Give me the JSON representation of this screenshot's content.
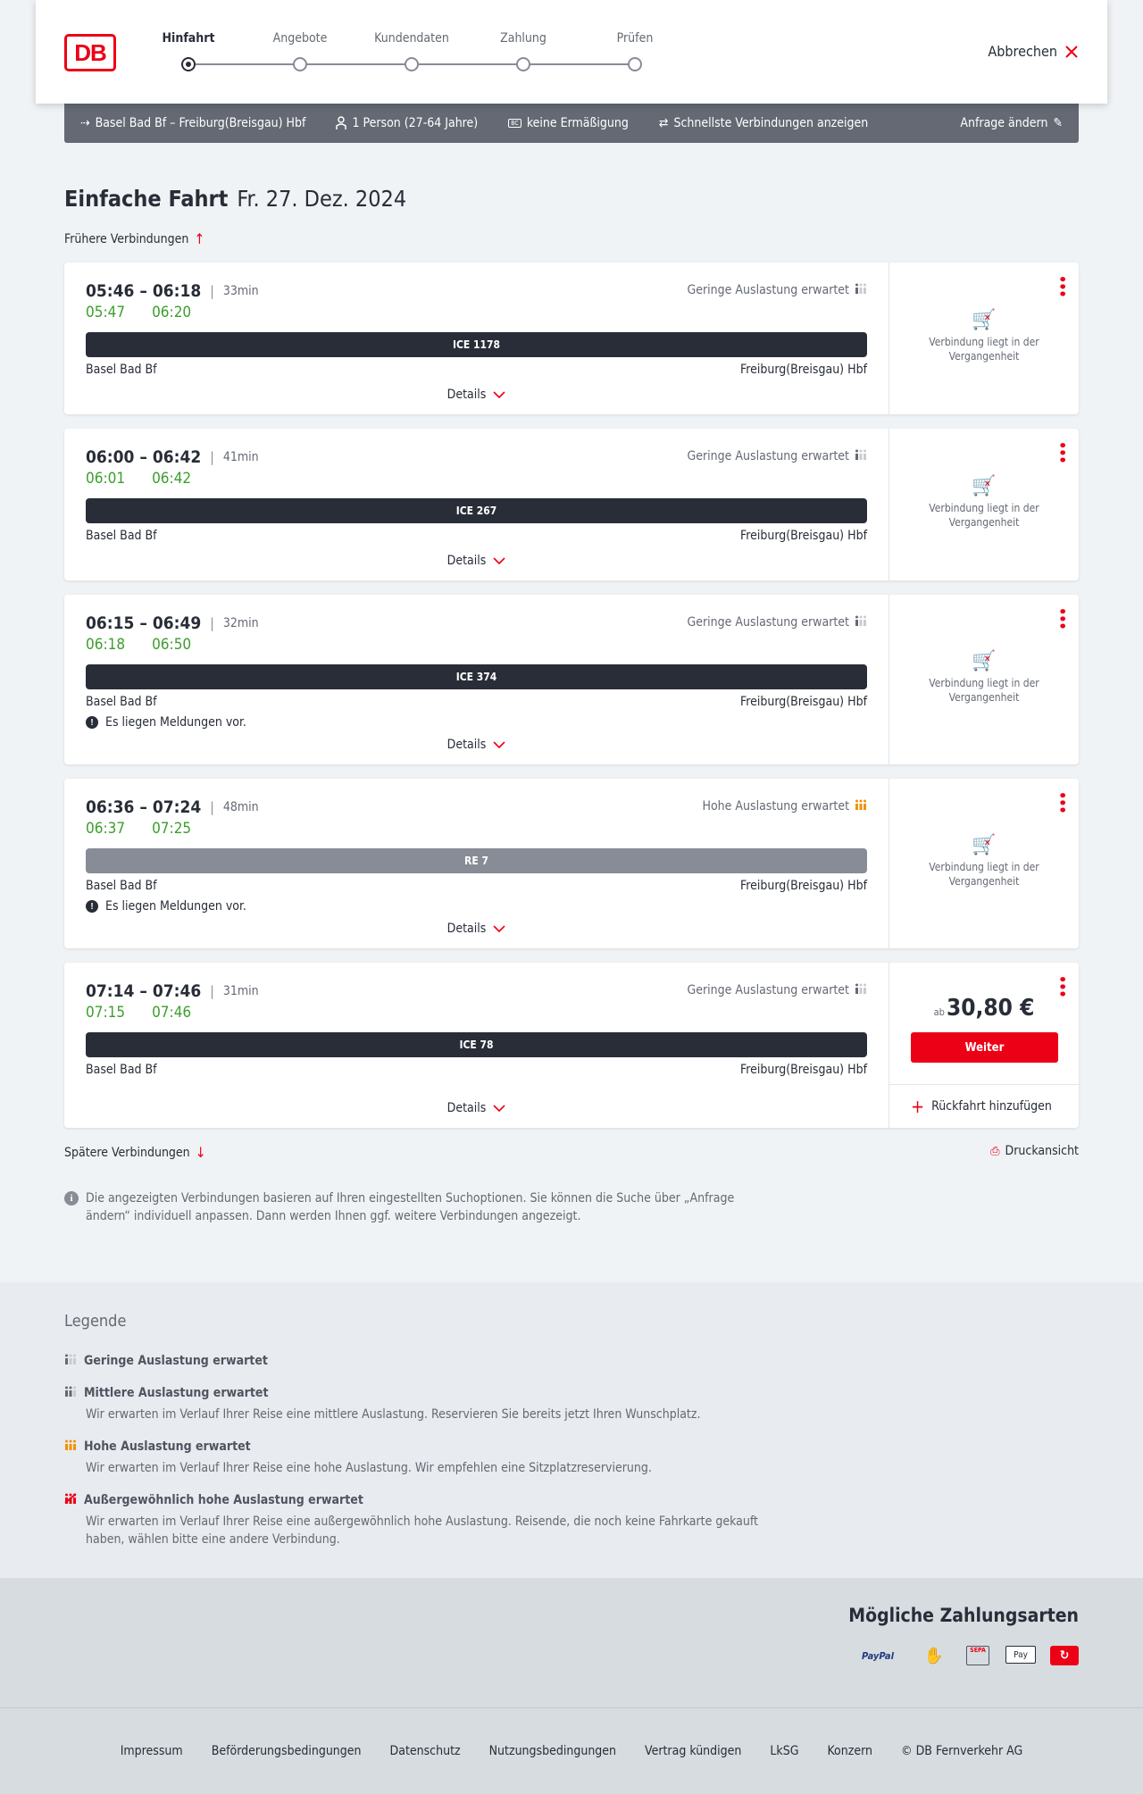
{
  "header": {
    "logo": "DB",
    "cancel": "Abbrechen",
    "steps": [
      "Hinfahrt",
      "Angebote",
      "Kundendaten",
      "Zahlung",
      "Prüfen"
    ],
    "active_step": 0
  },
  "query": {
    "route": "Basel Bad Bf – Freiburg(Breisgau) Hbf",
    "passengers": "1 Person (27-64 Jahre)",
    "discount": "keine Ermäßigung",
    "fastest": "Schnellste Verbindungen anzeigen",
    "edit": "Anfrage ändern"
  },
  "title": {
    "type": "Einfache Fahrt",
    "date": "Fr. 27. Dez. 2024"
  },
  "earlier": "Frühere Verbindungen",
  "later": "Spätere Verbindungen",
  "print": "Druckansicht",
  "connections": [
    {
      "times": "05:46 – 06:18",
      "duration": "33min",
      "occupancy": "Geringe Auslastung erwartet",
      "occ_level": "low",
      "rt_dep": "05:47",
      "rt_arr": "06:20",
      "train": "ICE 1178",
      "train_type": "ice",
      "from": "Basel Bad Bf",
      "to": "Freiburg(Breisgau) Hbf",
      "message": null,
      "details": "Details",
      "past": "Verbindung liegt in der Vergangenheit"
    },
    {
      "times": "06:00 – 06:42",
      "duration": "41min",
      "occupancy": "Geringe Auslastung erwartet",
      "occ_level": "low",
      "rt_dep": "06:01",
      "rt_arr": "06:42",
      "train": "ICE 267",
      "train_type": "ice",
      "from": "Basel Bad Bf",
      "to": "Freiburg(Breisgau) Hbf",
      "message": null,
      "details": "Details",
      "past": "Verbindung liegt in der Vergangenheit"
    },
    {
      "times": "06:15 – 06:49",
      "duration": "32min",
      "occupancy": "Geringe Auslastung erwartet",
      "occ_level": "low",
      "rt_dep": "06:18",
      "rt_arr": "06:50",
      "train": "ICE 374",
      "train_type": "ice",
      "from": "Basel Bad Bf",
      "to": "Freiburg(Breisgau) Hbf",
      "message": "Es liegen Meldungen vor.",
      "details": "Details",
      "past": "Verbindung liegt in der Vergangenheit"
    },
    {
      "times": "06:36 – 07:24",
      "duration": "48min",
      "occupancy": "Hohe Auslastung erwartet",
      "occ_level": "high",
      "rt_dep": "06:37",
      "rt_arr": "07:25",
      "train": "RE 7",
      "train_type": "re",
      "from": "Basel Bad Bf",
      "to": "Freiburg(Breisgau) Hbf",
      "message": "Es liegen Meldungen vor.",
      "details": "Details",
      "past": "Verbindung liegt in der Vergangenheit"
    },
    {
      "times": "07:14 – 07:46",
      "duration": "31min",
      "occupancy": "Geringe Auslastung erwartet",
      "occ_level": "low",
      "rt_dep": "07:15",
      "rt_arr": "07:46",
      "train": "ICE 78",
      "train_type": "ice",
      "from": "Basel Bad Bf",
      "to": "Freiburg(Breisgau) Hbf",
      "message": null,
      "details": "Details",
      "price_prefix": "ab",
      "price": "30,80 €",
      "button": "Weiter",
      "return": "Rückfahrt hinzufügen"
    }
  ],
  "info": "Die angezeigten Verbindungen basieren auf Ihren eingestellten Suchoptionen. Sie können die Suche über „Anfrage ändern“ individuell anpassen. Dann werden Ihnen ggf. weitere Verbindungen angezeigt.",
  "legend": {
    "title": "Legende",
    "items": [
      {
        "label": "Geringe Auslastung erwartet",
        "text": "",
        "level": "low"
      },
      {
        "label": "Mittlere Auslastung erwartet",
        "text": "Wir erwarten im Verlauf Ihrer Reise eine mittlere Auslastung. Reservieren Sie bereits jetzt Ihren Wunschplatz.",
        "level": "mid"
      },
      {
        "label": "Hohe Auslastung erwartet",
        "text": "Wir erwarten im Verlauf Ihrer Reise eine hohe Auslastung. Wir empfehlen eine Sitzplatzreservierung.",
        "level": "high"
      },
      {
        "label": "Außergewöhnlich hohe Auslastung erwartet",
        "text": "Wir erwarten im Verlauf Ihrer Reise eine außergewöhnlich hohe Auslastung. Reisende, die noch keine Fahrkarte gekauft haben, wählen bitte eine andere Verbindung.",
        "level": "extreme"
      }
    ]
  },
  "payment": {
    "title": "Mögliche Zahlungsarten",
    "methods": [
      "PayPal",
      "Kreditkarte",
      "SEPA",
      "Pay",
      "DB Bonus"
    ]
  },
  "footer": [
    "Impressum",
    "Beförderungsbedingungen",
    "Datenschutz",
    "Nutzungsbedingungen",
    "Vertrag kündigen",
    "LkSG",
    "Konzern",
    "© DB Fernverkehr AG"
  ],
  "colors": {
    "accent": "#ec0016",
    "realtime": "#3b9e2c",
    "dark": "#282d37",
    "high": "#f39200"
  }
}
